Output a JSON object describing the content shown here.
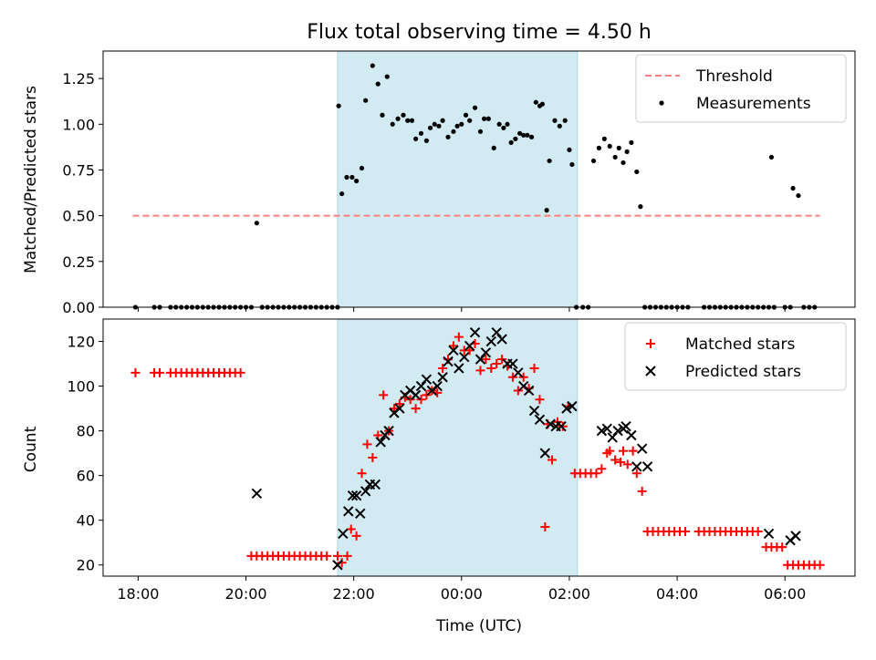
{
  "chart_data": [
    {
      "type": "scatter",
      "title": "Flux total observing time = 4.50 h",
      "xlabel": "",
      "ylabel": "Matched/Predicted stars",
      "x_unit": "hours relative to 00:00 UTC",
      "xlim": [
        -6.65,
        7.3
      ],
      "ylim": [
        0,
        1.4
      ],
      "yticks": [
        "0.00",
        "0.25",
        "0.50",
        "0.75",
        "1.00",
        "1.25"
      ],
      "shaded_interval": [
        -2.3,
        2.15
      ],
      "shade_color": "#add8e6",
      "legend_position": "top-right",
      "series": [
        {
          "name": "Threshold",
          "style": "dashed-line",
          "color": "#ff7f7f",
          "x": [
            -6.1,
            6.65
          ],
          "y": [
            0.5,
            0.5
          ]
        },
        {
          "name": "Measurements",
          "style": "dot",
          "color": "#000000",
          "x": [
            -6.05,
            -5.7,
            -5.6,
            -5.4,
            -5.3,
            -5.2,
            -5.1,
            -5.0,
            -4.9,
            -4.8,
            -4.7,
            -4.6,
            -4.5,
            -4.4,
            -4.3,
            -4.2,
            -4.1,
            -4.0,
            -3.9,
            -3.8,
            -3.7,
            -3.6,
            -3.5,
            -3.4,
            -3.3,
            -3.2,
            -3.1,
            -3.0,
            -2.9,
            -2.8,
            -2.7,
            -2.6,
            -2.5,
            -2.4,
            -2.3,
            -2.28,
            -2.22,
            -2.13,
            -2.03,
            -1.95,
            -1.85,
            -1.78,
            -1.65,
            -1.55,
            -1.47,
            -1.38,
            -1.28,
            -1.18,
            -1.08,
            -1.0,
            -0.92,
            -0.85,
            -0.75,
            -0.65,
            -0.58,
            -0.5,
            -0.42,
            -0.35,
            -0.25,
            -0.15,
            -0.08,
            0.0,
            0.08,
            0.15,
            0.25,
            0.35,
            0.42,
            0.5,
            0.6,
            0.7,
            0.78,
            0.85,
            0.92,
            1.0,
            1.08,
            1.15,
            1.22,
            1.3,
            1.38,
            1.45,
            1.5,
            1.58,
            1.63,
            1.73,
            1.82,
            1.92,
            2.0,
            2.05,
            2.13,
            2.25,
            2.35,
            2.45,
            2.55,
            2.65,
            2.75,
            2.85,
            2.92,
            3.0,
            3.07,
            3.15,
            3.25,
            3.32,
            3.4,
            3.5,
            3.6,
            3.7,
            3.8,
            3.9,
            4.0,
            4.1,
            4.2,
            4.5,
            4.6,
            4.7,
            4.8,
            4.9,
            5.0,
            5.1,
            5.2,
            5.3,
            5.4,
            5.5,
            5.6,
            5.7,
            5.75,
            5.8,
            6.0,
            6.1,
            6.15,
            6.25,
            6.35,
            6.45,
            6.55
          ],
          "y": [
            0.0,
            0.0,
            0.0,
            0.0,
            0.0,
            0.0,
            0.0,
            0.0,
            0.0,
            0.0,
            0.0,
            0.0,
            0.0,
            0.0,
            0.0,
            0.0,
            0.0,
            0.0,
            0.0,
            0.46,
            0.0,
            0.0,
            0.0,
            0.0,
            0.0,
            0.0,
            0.0,
            0.0,
            0.0,
            0.0,
            0.0,
            0.0,
            0.0,
            0.0,
            0.0,
            1.1,
            0.62,
            0.71,
            0.71,
            0.69,
            0.76,
            1.13,
            1.32,
            1.22,
            1.05,
            1.26,
            1.0,
            1.03,
            1.05,
            1.02,
            1.02,
            0.92,
            0.95,
            0.91,
            0.98,
            1.0,
            0.99,
            1.02,
            0.93,
            0.96,
            0.99,
            1.0,
            1.05,
            1.02,
            1.09,
            0.96,
            1.03,
            1.03,
            0.87,
            1.0,
            0.98,
            1.0,
            0.9,
            0.92,
            0.95,
            0.94,
            0.94,
            0.93,
            1.12,
            1.1,
            1.11,
            0.53,
            0.8,
            1.02,
            0.99,
            1.02,
            0.86,
            0.78,
            0.0,
            0.0,
            0.0,
            0.8,
            0.87,
            0.92,
            0.88,
            0.82,
            0.87,
            0.79,
            0.85,
            0.9,
            0.74,
            0.55,
            0.0,
            0.0,
            0.0,
            0.0,
            0.0,
            0.0,
            0.0,
            0.0,
            0.0,
            0.0,
            0.0,
            0.0,
            0.0,
            0.0,
            0.0,
            0.0,
            0.0,
            0.0,
            0.0,
            0.0,
            0.0,
            0.0,
            0.82,
            0.0,
            0.0,
            0.0,
            0.65,
            0.61,
            0.0,
            0.0,
            0.0
          ]
        }
      ]
    },
    {
      "type": "scatter",
      "title": "",
      "xlabel": "Time (UTC)",
      "ylabel": "Count",
      "x_unit": "hours relative to 00:00 UTC",
      "xlim": [
        -6.65,
        7.3
      ],
      "ylim": [
        15,
        130
      ],
      "yticks": [
        "20",
        "40",
        "60",
        "80",
        "100",
        "120"
      ],
      "xticks": [
        "18:00",
        "20:00",
        "22:00",
        "00:00",
        "02:00",
        "04:00",
        "06:00"
      ],
      "xtick_values": [
        -6,
        -4,
        -2,
        0,
        2,
        4,
        6
      ],
      "shaded_interval": [
        -2.3,
        2.15
      ],
      "shade_color": "#add8e6",
      "legend_position": "top-right",
      "series": [
        {
          "name": "Matched stars",
          "style": "plus",
          "color": "#ff0000",
          "x": [
            -6.05,
            -5.7,
            -5.6,
            -5.4,
            -5.3,
            -5.2,
            -5.1,
            -5.0,
            -4.9,
            -4.8,
            -4.7,
            -4.6,
            -4.5,
            -4.4,
            -4.3,
            -4.2,
            -4.1,
            -3.9,
            -3.8,
            -3.7,
            -3.6,
            -3.5,
            -3.4,
            -3.3,
            -3.2,
            -3.1,
            -3.0,
            -2.9,
            -2.8,
            -2.7,
            -2.6,
            -2.5,
            -2.3,
            -2.22,
            -2.12,
            -2.05,
            -1.95,
            -1.85,
            -1.75,
            -1.65,
            -1.55,
            -1.45,
            -1.35,
            -1.25,
            -1.15,
            -1.05,
            -0.95,
            -0.85,
            -0.75,
            -0.65,
            -0.55,
            -0.45,
            -0.35,
            -0.25,
            -0.15,
            -0.05,
            0.05,
            0.15,
            0.25,
            0.35,
            0.45,
            0.55,
            0.65,
            0.75,
            0.85,
            0.95,
            1.05,
            1.15,
            1.25,
            1.35,
            1.45,
            1.55,
            1.6,
            1.68,
            1.78,
            1.88,
            1.98,
            2.1,
            2.2,
            2.3,
            2.4,
            2.5,
            2.6,
            2.7,
            2.75,
            2.85,
            2.95,
            3.0,
            3.08,
            3.18,
            3.25,
            3.35,
            3.45,
            3.55,
            3.65,
            3.75,
            3.85,
            3.95,
            4.05,
            4.15,
            4.4,
            4.5,
            4.6,
            4.7,
            4.8,
            4.9,
            5.0,
            5.1,
            5.2,
            5.3,
            5.4,
            5.5,
            5.65,
            5.75,
            5.85,
            5.95,
            6.05,
            6.15,
            6.25,
            6.35,
            6.45,
            6.55,
            6.65
          ],
          "y": [
            106,
            106,
            106,
            106,
            106,
            106,
            106,
            106,
            106,
            106,
            106,
            106,
            106,
            106,
            106,
            106,
            106,
            24,
            24,
            24,
            24,
            24,
            24,
            24,
            24,
            24,
            24,
            24,
            24,
            24,
            24,
            24,
            24,
            21,
            24,
            36,
            33,
            61,
            74,
            68,
            78,
            96,
            80,
            90,
            92,
            95,
            94,
            90,
            94,
            96,
            98,
            97,
            108,
            112,
            118,
            122,
            116,
            116,
            119,
            107,
            112,
            108,
            110,
            112,
            109,
            104,
            98,
            104,
            99,
            108,
            94,
            37,
            83,
            67,
            84,
            82,
            91,
            61,
            61,
            61,
            61,
            61,
            63,
            70,
            71,
            67,
            66,
            71,
            65,
            71,
            61,
            53,
            35,
            35,
            35,
            35,
            35,
            35,
            35,
            35,
            35,
            35,
            35,
            35,
            35,
            35,
            35,
            35,
            35,
            35,
            35,
            35,
            28,
            28,
            28,
            28,
            20,
            20,
            20,
            20,
            20,
            20,
            20
          ]
        },
        {
          "name": "Predicted stars",
          "style": "cross",
          "color": "#000000",
          "x": [
            -3.8,
            -2.3,
            -2.2,
            -2.1,
            -2.02,
            -1.95,
            -1.88,
            -1.78,
            -1.7,
            -1.6,
            -1.5,
            -1.42,
            -1.35,
            -1.25,
            -1.15,
            -1.05,
            -0.95,
            -0.85,
            -0.75,
            -0.65,
            -0.55,
            -0.45,
            -0.35,
            -0.25,
            -0.15,
            -0.05,
            0.05,
            0.15,
            0.25,
            0.35,
            0.45,
            0.55,
            0.65,
            0.75,
            0.85,
            0.95,
            1.05,
            1.15,
            1.25,
            1.35,
            1.45,
            1.55,
            1.65,
            1.75,
            1.85,
            1.95,
            2.05,
            2.6,
            2.7,
            2.8,
            2.9,
            3.0,
            3.05,
            3.15,
            3.25,
            3.35,
            3.45,
            5.7,
            6.1,
            6.2
          ],
          "y": [
            52,
            20,
            34,
            44,
            51,
            51,
            43,
            53,
            56,
            56,
            75,
            78,
            80,
            88,
            90,
            96,
            98,
            96,
            100,
            103,
            98,
            100,
            104,
            111,
            116,
            108,
            113,
            118,
            124,
            112,
            115,
            120,
            124,
            121,
            110,
            110,
            106,
            100,
            98,
            89,
            85,
            70,
            83,
            82,
            82,
            90,
            91,
            80,
            81,
            77,
            80,
            81,
            82,
            78,
            64,
            72,
            64,
            34,
            31,
            33
          ]
        }
      ]
    }
  ]
}
